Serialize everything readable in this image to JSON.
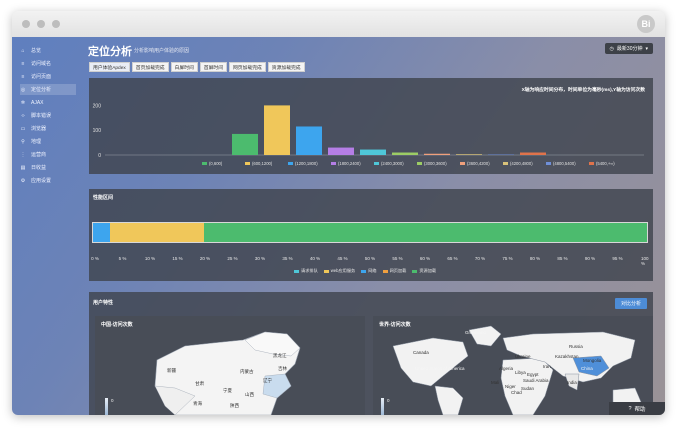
{
  "window": {
    "logo_text": "Bi"
  },
  "sidebar": {
    "items": [
      {
        "label": "总览",
        "icon": "home-icon"
      },
      {
        "label": "访问域名",
        "icon": "list-icon"
      },
      {
        "label": "访问页面",
        "icon": "list-icon"
      },
      {
        "label": "定位分析",
        "icon": "locate-icon",
        "active": true
      },
      {
        "label": "AJAX",
        "icon": "gear-icon"
      },
      {
        "label": "脚本错误",
        "icon": "code-icon"
      },
      {
        "label": "浏览器",
        "icon": "browser-icon"
      },
      {
        "label": "地理",
        "icon": "pin-icon"
      },
      {
        "label": "运营商",
        "icon": "signal-icon"
      },
      {
        "label": "日收益",
        "icon": "chart-icon"
      },
      {
        "label": "应用设置",
        "icon": "settings-icon"
      }
    ]
  },
  "header": {
    "title": "定位分析",
    "subtitle": "分析影响用户体验的原因",
    "time_button": "最新30分钟"
  },
  "tabs": [
    "用户体验Apdex",
    "首页加载完成",
    "白屏时间",
    "首屏时间",
    "网页加载完成",
    "资源加载完成"
  ],
  "distribution_panel": {
    "note": "X轴为响应时间分布，时间单位为毫秒(ms),Y轴为访问次数"
  },
  "chart_data": {
    "type": "bar",
    "categories": [
      "(0,600)",
      "(600,1200)",
      "(1200,1800)",
      "(1800,2400)",
      "(2400,3000)",
      "(3000,3600)",
      "(3600,4200)",
      "(4200,4800)",
      "(4800,5400)",
      "(5400,+∞)"
    ],
    "values": [
      85,
      200,
      115,
      30,
      22,
      10,
      5,
      3,
      2,
      10
    ],
    "colors": [
      "#4cbb6e",
      "#f0c75a",
      "#3da5ee",
      "#b57ee6",
      "#4fc7d8",
      "#9ccc65",
      "#f0a07c",
      "#d8c27a",
      "#6f8fd8",
      "#e0734b"
    ],
    "ylim": [
      0,
      250
    ],
    "yticks": [
      0,
      100,
      200
    ]
  },
  "time_section": {
    "title": "性能区间",
    "segments": [
      {
        "name": "请求排队",
        "value": 3,
        "color": "#3da5ee"
      },
      {
        "name": "web应用服务",
        "value": 17,
        "color": "#f0c75a"
      },
      {
        "name": "网络",
        "value": 80,
        "color": "#4cbb6e"
      }
    ],
    "legend": [
      {
        "name": "请求排队",
        "color": "#4fc7d8"
      },
      {
        "name": "web应用服务",
        "color": "#f0c75a"
      },
      {
        "name": "网络",
        "color": "#3da5ee"
      },
      {
        "name": "网页加载",
        "color": "#f0a040"
      },
      {
        "name": "资源加载",
        "color": "#4cbb6e"
      }
    ],
    "pct_labels": [
      "0 %",
      "5 %",
      "10 %",
      "15 %",
      "20 %",
      "25 %",
      "30 %",
      "35 %",
      "40 %",
      "45 %",
      "50 %",
      "55 %",
      "60 %",
      "65 %",
      "70 %",
      "75 %",
      "80 %",
      "85 %",
      "90 %",
      "95 %",
      "100 %"
    ]
  },
  "user_section": {
    "title": "用户特性",
    "compare_button": "对比分析",
    "china_map": {
      "title": "中国-访问次数",
      "scale_value": "0",
      "labels": [
        "黑龙江",
        "吉林",
        "内蒙古",
        "辽宁",
        "新疆",
        "甘肃",
        "宁夏",
        "山西",
        "青海",
        "陕西"
      ]
    },
    "world_map": {
      "title": "世界-访问次数",
      "scale_value": "0",
      "labels": [
        "Greenland",
        "Canada",
        "Russia",
        "Kazakhstan",
        "Ukraine",
        "United States of America",
        "Mongolia",
        "Iran",
        "Algeria",
        "Libya",
        "Egypt",
        "Saudi Arabia",
        "Mali",
        "Niger",
        "Sudan",
        "Chad",
        "India",
        "China"
      ]
    }
  },
  "help": {
    "label": "帮助"
  }
}
